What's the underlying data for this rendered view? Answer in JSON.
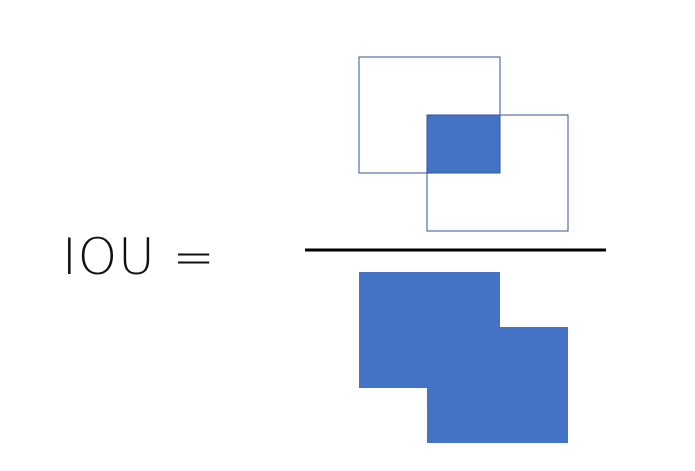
{
  "formula": {
    "lhs_label": "IOU ="
  },
  "colors": {
    "fill": "#4472C4",
    "outline": "#2F5597",
    "fraction_bar": "#000000",
    "text": "#111111"
  },
  "numerator": {
    "description_shape": "intersection of two overlapping rectangles (outlined boxes with shaded overlap)"
  },
  "denominator": {
    "description_shape": "union of the two rectangles (filled combined shape)"
  }
}
